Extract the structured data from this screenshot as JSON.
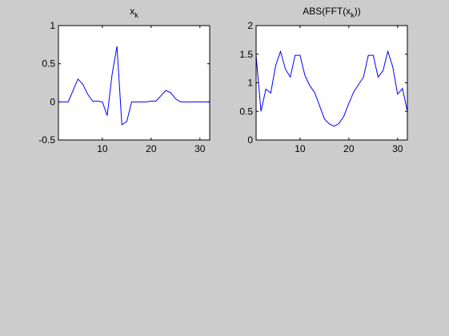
{
  "figure": {
    "background": "#cccccc",
    "axes_background": "#ffffff",
    "line_color": "#0000ff"
  },
  "chart_data": [
    {
      "type": "line",
      "title": "x",
      "title_subscript": "k",
      "xlabel": "",
      "ylabel": "",
      "xlim": [
        1,
        32
      ],
      "ylim": [
        -0.5,
        1
      ],
      "xticks": [
        10,
        20,
        30
      ],
      "yticks": [
        -0.5,
        0,
        0.5,
        1
      ],
      "xtick_labels": [
        "10",
        "20",
        "30"
      ],
      "ytick_labels": [
        "-0.5",
        "0",
        "0.5",
        "1"
      ],
      "grid": false,
      "series": [
        {
          "x": [
            1,
            2,
            3,
            4,
            5,
            6,
            7,
            8,
            9,
            10,
            11,
            12,
            13,
            14,
            15,
            16,
            17,
            18,
            19,
            20,
            21,
            22,
            23,
            24,
            25,
            26,
            27,
            28,
            29,
            30,
            31,
            32
          ],
          "values": [
            0,
            0,
            0,
            0.15,
            0.3,
            0.23,
            0.1,
            0.01,
            0.01,
            0,
            -0.18,
            0.36,
            0.73,
            -0.3,
            -0.26,
            0,
            0,
            0,
            0,
            0.01,
            0.01,
            0.08,
            0.15,
            0.12,
            0.04,
            0,
            0,
            0,
            0,
            0,
            0,
            0
          ]
        }
      ]
    },
    {
      "type": "line",
      "title": "ABS(FFT(x",
      "title_subscript": "k",
      "title_suffix": "))",
      "xlabel": "",
      "ylabel": "",
      "xlim": [
        1,
        32
      ],
      "ylim": [
        0,
        2
      ],
      "xticks": [
        10,
        20,
        30
      ],
      "yticks": [
        0,
        0.5,
        1,
        1.5,
        2
      ],
      "xtick_labels": [
        "10",
        "20",
        "30"
      ],
      "ytick_labels": [
        "0",
        "0.5",
        "1",
        "1.5",
        "2"
      ],
      "grid": false,
      "series": [
        {
          "x": [
            1,
            2,
            3,
            4,
            5,
            6,
            7,
            8,
            9,
            10,
            11,
            12,
            13,
            14,
            15,
            16,
            17,
            18,
            19,
            20,
            21,
            22,
            23,
            24,
            25,
            26,
            27,
            28,
            29,
            30,
            31,
            32
          ],
          "values": [
            1.48,
            0.5,
            0.89,
            0.82,
            1.3,
            1.55,
            1.24,
            1.1,
            1.48,
            1.48,
            1.13,
            0.95,
            0.83,
            0.6,
            0.37,
            0.28,
            0.24,
            0.29,
            0.42,
            0.64,
            0.84,
            0.97,
            1.1,
            1.48,
            1.48,
            1.1,
            1.21,
            1.55,
            1.28,
            0.8,
            0.9,
            0.5
          ]
        }
      ]
    }
  ]
}
